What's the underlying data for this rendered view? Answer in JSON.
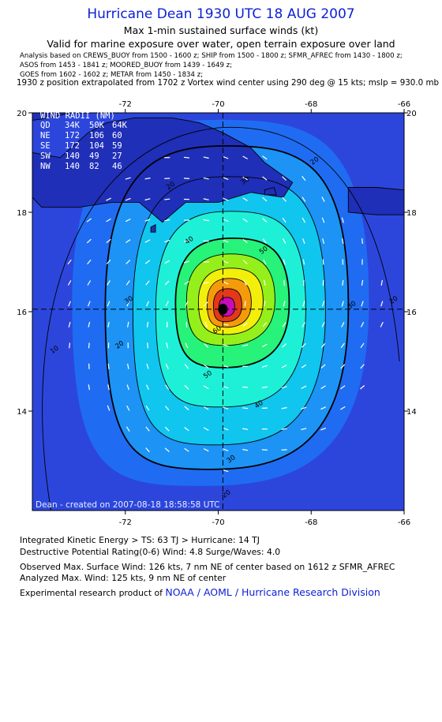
{
  "header": {
    "title": "Hurricane Dean 1930 UTC 18 AUG 2007",
    "subtitle1": "Max 1-min sustained surface winds (kt)",
    "subtitle2": "Valid for marine exposure over water, open terrain exposure over land",
    "analysis_lines": [
      "Analysis based on  CREWS_BUOY from 1500 - 1600 z;  SHIP from 1500 - 1800 z;  SFMR_AFREC from 1430 - 1800 z;",
      "ASOS from 1453 - 1841 z;  MOORED_BUOY from 1439 - 1649 z;",
      "GOES from 1602 - 1602 z;  METAR from 1450 - 1834 z;"
    ],
    "position_note": "1930 z position extrapolated from 1702 z Vortex wind center using 290 deg @ 15 kts; mslp = 930.0 mb"
  },
  "map": {
    "lon_ticks": [
      "-72",
      "-70",
      "-68",
      "-66"
    ],
    "lat_ticks": [
      "20",
      "18",
      "16",
      "14"
    ],
    "lon_range": [
      -74.0,
      -66.0
    ],
    "lat_range": [
      12.0,
      20.0
    ],
    "center": {
      "lon": -69.9,
      "lat": 16.05
    },
    "credit": "Dean  -  created on  2007-08-18  18:58:58  UTC",
    "contour_labels": [
      {
        "text": "10",
        "lon": -73.5,
        "lat": 15.2
      },
      {
        "text": "20",
        "lon": -72.1,
        "lat": 15.3
      },
      {
        "text": "30",
        "lon": -71.9,
        "lat": 16.2
      },
      {
        "text": "20",
        "lon": -71.0,
        "lat": 18.5
      },
      {
        "text": "30",
        "lon": -69.4,
        "lat": 18.6
      },
      {
        "text": "20",
        "lon": -67.9,
        "lat": 19.0
      },
      {
        "text": "40",
        "lon": -70.6,
        "lat": 17.4
      },
      {
        "text": "50",
        "lon": -69.0,
        "lat": 17.2
      },
      {
        "text": "60",
        "lon": -70.0,
        "lat": 15.6
      },
      {
        "text": "50",
        "lon": -70.2,
        "lat": 14.7
      },
      {
        "text": "40",
        "lon": -69.1,
        "lat": 14.1
      },
      {
        "text": "30",
        "lon": -69.7,
        "lat": 13.0
      },
      {
        "text": "20",
        "lon": -69.8,
        "lat": 12.3
      },
      {
        "text": "30",
        "lon": -67.1,
        "lat": 16.1
      },
      {
        "text": "20",
        "lon": -66.2,
        "lat": 16.2
      }
    ],
    "colors": {
      "ocean": "#2c46dc",
      "band_10_20": "#1f6cf2",
      "band_20_30": "#1c93f5",
      "band_30_40": "#10c5ee",
      "band_40_50": "#1ef0d8",
      "band_50_64": "#27f27a",
      "band_64_83": "#95ef1a",
      "band_83_96": "#f2ef0c",
      "band_96_113": "#f49b0c",
      "band_113_up": "#e23a19",
      "core": "#c70db7",
      "land": "#1f2fb8"
    }
  },
  "wind_radii": {
    "title": "WIND RADII (NM)",
    "headers": [
      "QD",
      "34K",
      "50K",
      "64K"
    ],
    "rows": [
      [
        "NE",
        "172",
        "106",
        "60"
      ],
      [
        "SE",
        "172",
        "104",
        "59"
      ],
      [
        "SW",
        "140",
        "49",
        "27"
      ],
      [
        "NW",
        "140",
        "82",
        "46"
      ]
    ]
  },
  "footer": {
    "ike": "Integrated Kinetic Energy > TS: 63 TJ   > Hurricane: 14 TJ",
    "dpr": "Destructive Potential Rating(0-6)   Wind: 4.8 Surge/Waves: 4.0",
    "obs": "Observed Max. Surface Wind: 126 kts, 7 nm NE of center based on 1612 z SFMR_AFREC",
    "analyzed": "Analyzed Max. Wind: 125 kts, 9 nm NE of center",
    "product": "Experimental research product of",
    "org": "NOAA / AOML / Hurricane Research Division"
  }
}
